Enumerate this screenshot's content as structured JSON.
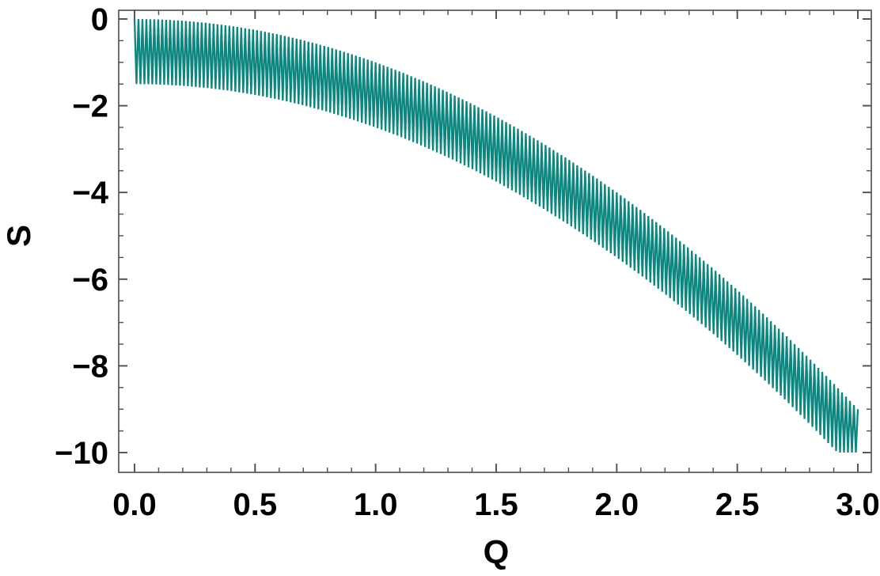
{
  "chart_data": {
    "type": "area",
    "title": "",
    "xlabel": "Q",
    "ylabel": "S",
    "background": "#ffffff",
    "frame_color": "#4d4d4d",
    "label_color": "#000000",
    "legend": "none",
    "grid": false,
    "x_axis": {
      "lim": [
        -0.0656,
        3.0558
      ],
      "data_range": [
        0,
        3
      ],
      "major_ticks": [
        0.0,
        0.5,
        1.0,
        1.5,
        2.0,
        2.5,
        3.0
      ],
      "tick_labels": [
        "0.0",
        "0.5",
        "1.0",
        "1.5",
        "2.0",
        "2.5",
        "3.0"
      ],
      "minor_step": 0.1
    },
    "y_axis": {
      "lim": [
        -10.456,
        0.2007
      ],
      "data_range": [
        -10,
        0
      ],
      "major_ticks": [
        0,
        -2,
        -4,
        -6,
        -8,
        -10
      ],
      "tick_labels": [
        "0",
        "−2",
        "−4",
        "−6",
        "−8",
        "−10"
      ],
      "minor_step": 0.5
    },
    "band": {
      "description": "Rapidly oscillating curve filling the band between upper envelope S = -Q^2 and lower envelope S = -Q^2 - 1.5, clipped below at S = -10",
      "color": "#0d8680",
      "oscillations": 183,
      "band_width": 1.5,
      "clip_min_S": -10,
      "Q_samples": [
        0.0,
        0.1,
        0.2,
        0.3,
        0.4,
        0.5,
        0.6,
        0.7,
        0.8,
        0.9,
        1.0,
        1.1,
        1.2,
        1.3,
        1.4,
        1.5,
        1.6,
        1.7,
        1.8,
        1.9,
        2.0,
        2.1,
        2.2,
        2.3,
        2.4,
        2.5,
        2.6,
        2.7,
        2.8,
        2.9,
        3.0
      ],
      "S_upper_samples": [
        0.0,
        -0.01,
        -0.04,
        -0.09,
        -0.16,
        -0.25,
        -0.36,
        -0.49,
        -0.64,
        -0.81,
        -1.0,
        -1.21,
        -1.44,
        -1.69,
        -1.96,
        -2.25,
        -2.56,
        -2.89,
        -3.24,
        -3.61,
        -4.0,
        -4.41,
        -4.84,
        -5.29,
        -5.76,
        -6.25,
        -6.76,
        -7.29,
        -7.84,
        -8.41,
        -9.0
      ]
    }
  }
}
